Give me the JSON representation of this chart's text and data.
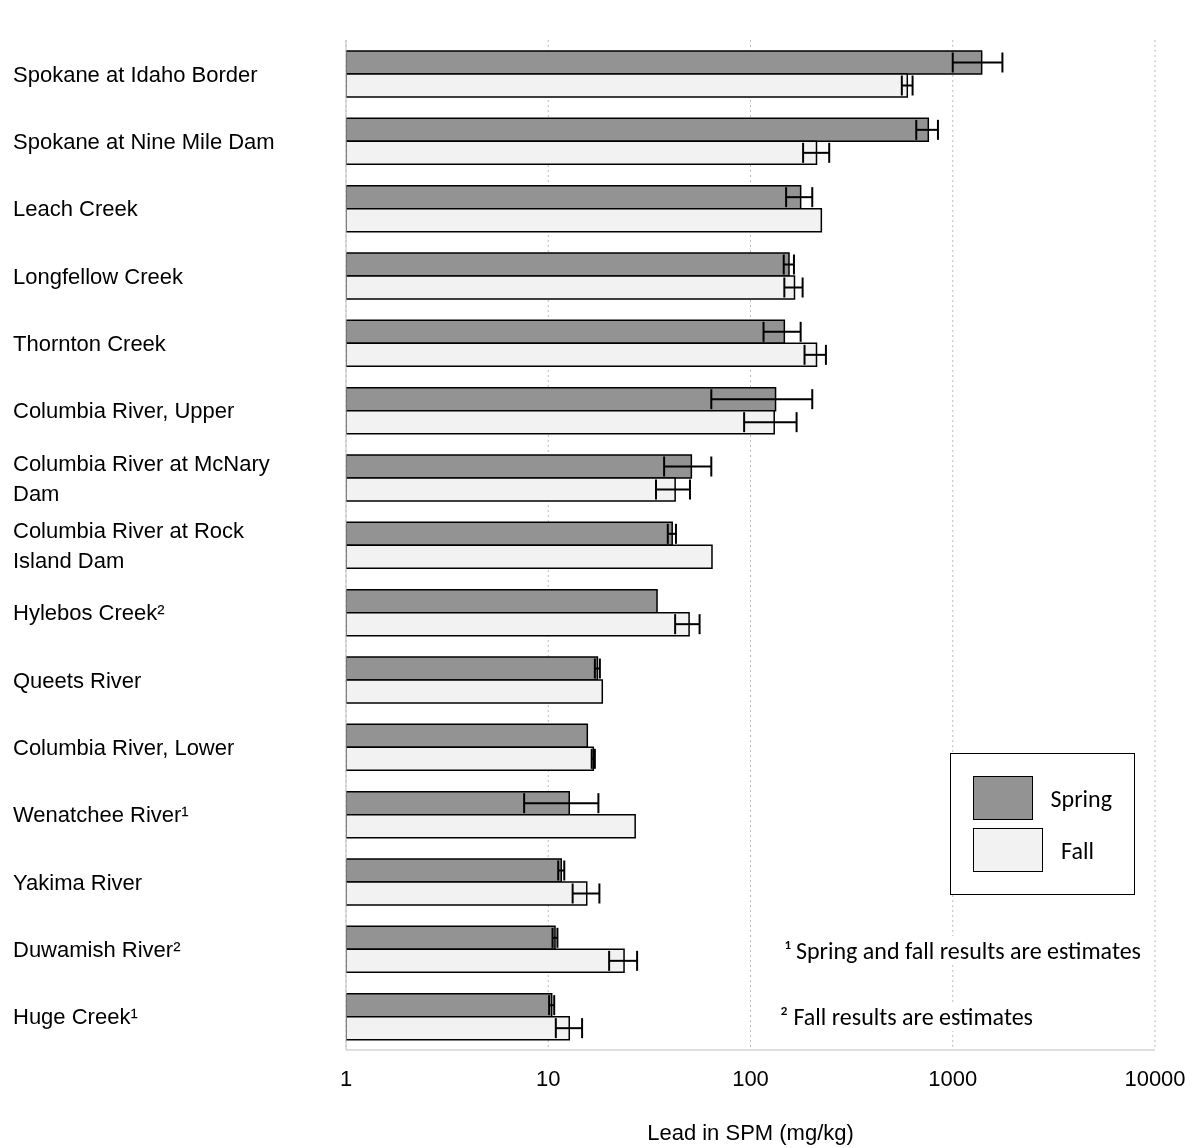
{
  "chart_data": {
    "type": "bar",
    "orientation": "horizontal",
    "xlabel": "Lead in SPM (mg/kg)",
    "categories": [
      "Spokane at Idaho Border",
      "Spokane at Nine Mile Dam",
      "Leach Creek",
      "Longfellow Creek",
      "Thornton Creek",
      "Columbia River, Upper",
      "Columbia River at McNary Dam",
      "Columbia River at Rock Island Dam",
      "Hylebos Creek²",
      "Queets River",
      "Columbia River, Lower",
      "Wenatchee River¹",
      "Yakima River",
      "Duwamish River²",
      "Huge Creek¹"
    ],
    "series": [
      {
        "name": "Spring",
        "color": "#939393",
        "values": [
          1390,
          757,
          177,
          155,
          147,
          133,
          51,
          41,
          34.5,
          17.5,
          15.6,
          12.7,
          11.6,
          10.8,
          10.4
        ],
        "errors": [
          [
            1000,
            1760
          ],
          [
            660,
            845
          ],
          [
            150,
            202
          ],
          [
            146,
            164
          ],
          [
            116,
            177
          ],
          [
            64,
            202
          ],
          [
            37.4,
            64
          ],
          [
            39,
            42.8
          ],
          null,
          [
            17,
            18
          ],
          null,
          [
            7.6,
            17.7
          ],
          [
            11.2,
            12
          ],
          [
            10.5,
            11.1
          ],
          [
            10.1,
            10.7
          ]
        ]
      },
      {
        "name": "Fall",
        "color": "#f2f2f2",
        "values": [
          596,
          212,
          224,
          165,
          212,
          131,
          42.4,
          64.5,
          49.7,
          18.5,
          16.7,
          26.9,
          15.5,
          23.7,
          12.7
        ],
        "errors": [
          [
            560,
            633
          ],
          [
            182,
            245
          ],
          null,
          [
            147,
            181
          ],
          [
            185,
            236
          ],
          [
            93,
            169
          ],
          [
            34.1,
            50.2
          ],
          null,
          [
            42.4,
            56
          ],
          null,
          [
            16.4,
            17
          ],
          null,
          [
            13.2,
            17.9
          ],
          [
            20,
            27.5
          ],
          [
            10.9,
            14.7
          ]
        ]
      }
    ],
    "xlim": [
      1,
      10000
    ],
    "xticks": [
      1,
      10,
      100,
      1000,
      10000
    ],
    "log": "x",
    "grid": "x",
    "legend": "bottom right",
    "annotations": [
      "¹ Spring and fall results are estimates",
      "² Fall results are estimates"
    ]
  }
}
